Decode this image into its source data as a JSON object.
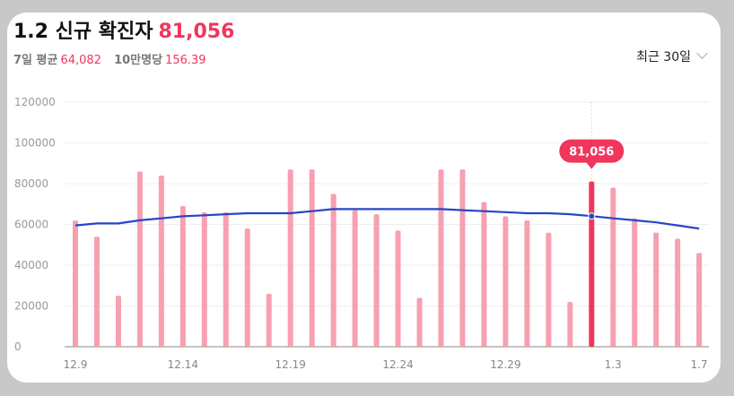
{
  "header": {
    "title": "1.2 신규 확진자",
    "value": "81,056",
    "avg_label": "7일 평균",
    "avg_value": "64,082",
    "per_label": "10만명당",
    "per_value": "156.39",
    "range_label": "최근 30일"
  },
  "colors": {
    "bar": "#f7a0b0",
    "bar_highlight": "#f0365c",
    "line": "#2645c8",
    "accent": "#f0365c"
  },
  "chart_data": {
    "type": "bar",
    "categories": [
      "12.9",
      "12.10",
      "12.11",
      "12.12",
      "12.13",
      "12.14",
      "12.15",
      "12.16",
      "12.17",
      "12.18",
      "12.19",
      "12.20",
      "12.21",
      "12.22",
      "12.23",
      "12.24",
      "12.25",
      "12.26",
      "12.27",
      "12.28",
      "12.29",
      "12.30",
      "12.31",
      "1.1",
      "1.2",
      "1.3",
      "1.4",
      "1.5",
      "1.6",
      "1.7"
    ],
    "x_tick_labels": [
      "12.9",
      "12.14",
      "12.19",
      "12.24",
      "12.29",
      "1.3",
      "1.7"
    ],
    "y_tick_labels": [
      "0",
      "20000",
      "40000",
      "60000",
      "80000",
      "100000",
      "120000"
    ],
    "ylim": [
      0,
      120000
    ],
    "series": [
      {
        "type": "bar",
        "values": [
          62000,
          54000,
          25000,
          86000,
          84000,
          69000,
          66000,
          66000,
          58000,
          26000,
          87000,
          87000,
          75000,
          67000,
          65000,
          57000,
          24000,
          87000,
          87000,
          71000,
          64000,
          62000,
          56000,
          22000,
          81056,
          78000,
          63000,
          56000,
          53000,
          46000
        ]
      },
      {
        "type": "line",
        "values": [
          59500,
          60500,
          60500,
          62000,
          63000,
          64000,
          64500,
          65000,
          65500,
          65500,
          65500,
          66500,
          67500,
          67500,
          67500,
          67500,
          67500,
          67500,
          67000,
          66500,
          66000,
          65500,
          65500,
          65000,
          64082,
          63000,
          62000,
          61000,
          59500,
          58000
        ]
      }
    ],
    "highlight_label": "81,056",
    "grid": true
  }
}
